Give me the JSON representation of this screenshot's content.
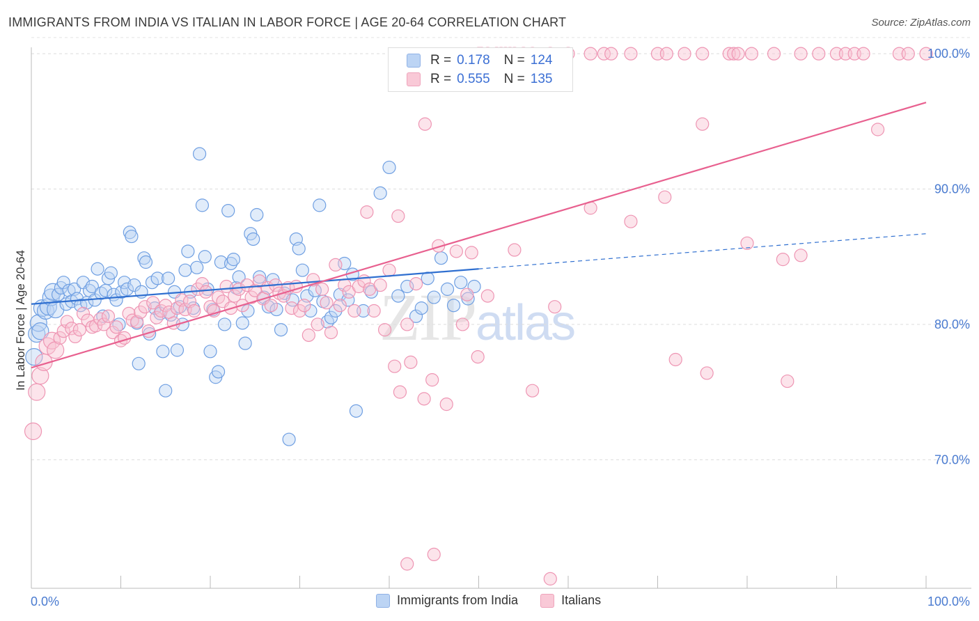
{
  "title": "IMMIGRANTS FROM INDIA VS ITALIAN IN LABOR FORCE | AGE 20-64 CORRELATION CHART",
  "source": "Source: ZipAtlas.com",
  "watermark": {
    "zip": "ZIP",
    "atlas": "atlas"
  },
  "legend": {
    "r_label": "R =",
    "n_label": "N =",
    "series": [
      {
        "r": "0.178",
        "n": "124",
        "color": "#a9c8f0"
      },
      {
        "r": "0.555",
        "n": "135",
        "color": "#f7b7cb"
      }
    ]
  },
  "bottom_legend": [
    {
      "label": "Immigrants from India",
      "color": "#a9c8f0"
    },
    {
      "label": "Italians",
      "color": "#f7b7cb"
    }
  ],
  "chart_data": {
    "type": "scatter",
    "ylabel": "In Labor Force | Age 20-64",
    "xlabel": "",
    "xlim": [
      0,
      100
    ],
    "ylim": [
      60.5,
      101.5
    ],
    "x_tick_labels": [
      "0.0%",
      "100.0%"
    ],
    "y_ticks": [
      70,
      80,
      90,
      100
    ],
    "y_tick_labels": [
      "70.0%",
      "80.0%",
      "90.0%",
      "100.0%"
    ],
    "grid": true,
    "series": [
      {
        "name": "Immigrants from India",
        "color": "#6fa0e6",
        "trend": {
          "x0": 0,
          "y0": 81.5,
          "x1": 50,
          "y1": 84.1,
          "dash_x1": 100,
          "dash_y1": 86.7,
          "color": "#2f6fd0"
        },
        "points": [
          [
            0.3,
            77.6
          ],
          [
            0.6,
            79.3
          ],
          [
            0.8,
            80.1
          ],
          [
            1.0,
            79.5
          ],
          [
            1.2,
            81.2
          ],
          [
            1.6,
            81.0
          ],
          [
            1.9,
            81.3
          ],
          [
            2.2,
            82.0
          ],
          [
            2.4,
            82.4
          ],
          [
            2.7,
            81.1
          ],
          [
            3.0,
            82.2
          ],
          [
            3.3,
            82.7
          ],
          [
            3.6,
            83.1
          ],
          [
            3.9,
            81.5
          ],
          [
            4.2,
            82.5
          ],
          [
            4.5,
            81.7
          ],
          [
            4.8,
            82.6
          ],
          [
            5.1,
            81.9
          ],
          [
            5.5,
            81.4
          ],
          [
            5.8,
            83.1
          ],
          [
            6.2,
            81.6
          ],
          [
            6.5,
            82.5
          ],
          [
            6.8,
            82.8
          ],
          [
            7.1,
            81.8
          ],
          [
            7.4,
            84.1
          ],
          [
            7.8,
            82.3
          ],
          [
            8.0,
            80.6
          ],
          [
            8.3,
            82.5
          ],
          [
            8.6,
            83.4
          ],
          [
            8.9,
            83.8
          ],
          [
            9.2,
            82.2
          ],
          [
            9.5,
            81.8
          ],
          [
            9.8,
            80.0
          ],
          [
            10.1,
            82.4
          ],
          [
            10.4,
            83.1
          ],
          [
            10.7,
            82.6
          ],
          [
            11.0,
            86.8
          ],
          [
            11.2,
            86.5
          ],
          [
            11.5,
            82.9
          ],
          [
            11.8,
            80.1
          ],
          [
            12.0,
            77.1
          ],
          [
            12.3,
            82.4
          ],
          [
            12.6,
            84.9
          ],
          [
            12.8,
            84.6
          ],
          [
            13.2,
            79.3
          ],
          [
            13.5,
            83.1
          ],
          [
            13.8,
            81.2
          ],
          [
            14.1,
            83.4
          ],
          [
            14.4,
            80.8
          ],
          [
            14.7,
            78.0
          ],
          [
            15.0,
            75.1
          ],
          [
            15.3,
            83.4
          ],
          [
            15.6,
            80.7
          ],
          [
            16.0,
            82.4
          ],
          [
            16.3,
            78.1
          ],
          [
            16.6,
            81.3
          ],
          [
            16.9,
            80.0
          ],
          [
            17.2,
            84.0
          ],
          [
            17.5,
            85.4
          ],
          [
            17.8,
            82.4
          ],
          [
            18.1,
            81.2
          ],
          [
            18.5,
            84.2
          ],
          [
            18.8,
            92.6
          ],
          [
            19.1,
            88.8
          ],
          [
            19.4,
            85.0
          ],
          [
            19.7,
            82.6
          ],
          [
            20.0,
            78.0
          ],
          [
            20.3,
            81.1
          ],
          [
            20.6,
            76.1
          ],
          [
            20.9,
            76.5
          ],
          [
            21.2,
            84.6
          ],
          [
            21.6,
            80.0
          ],
          [
            22.0,
            88.4
          ],
          [
            22.3,
            84.5
          ],
          [
            22.6,
            84.8
          ],
          [
            22.9,
            82.7
          ],
          [
            23.2,
            83.5
          ],
          [
            23.6,
            80.1
          ],
          [
            23.9,
            78.6
          ],
          [
            24.2,
            81.0
          ],
          [
            24.5,
            86.7
          ],
          [
            24.8,
            86.3
          ],
          [
            25.2,
            88.1
          ],
          [
            25.5,
            83.5
          ],
          [
            26.0,
            82.0
          ],
          [
            26.5,
            81.3
          ],
          [
            27.0,
            83.3
          ],
          [
            27.4,
            81.1
          ],
          [
            27.9,
            79.6
          ],
          [
            28.3,
            82.3
          ],
          [
            28.8,
            71.5
          ],
          [
            29.2,
            81.8
          ],
          [
            29.6,
            86.3
          ],
          [
            29.9,
            85.6
          ],
          [
            30.3,
            84.0
          ],
          [
            30.8,
            82.1
          ],
          [
            31.2,
            81.0
          ],
          [
            31.7,
            82.5
          ],
          [
            32.2,
            88.8
          ],
          [
            32.6,
            81.7
          ],
          [
            33.1,
            80.2
          ],
          [
            33.5,
            80.5
          ],
          [
            34.0,
            81.0
          ],
          [
            34.5,
            82.2
          ],
          [
            35.0,
            84.5
          ],
          [
            35.4,
            81.8
          ],
          [
            35.9,
            83.7
          ],
          [
            36.3,
            73.6
          ],
          [
            37.1,
            81.0
          ],
          [
            38.0,
            82.4
          ],
          [
            39.0,
            89.7
          ],
          [
            40.0,
            91.6
          ],
          [
            41.0,
            82.1
          ],
          [
            42.0,
            82.8
          ],
          [
            43.0,
            80.6
          ],
          [
            43.6,
            81.2
          ],
          [
            44.3,
            83.4
          ],
          [
            45.0,
            82.0
          ],
          [
            45.8,
            84.9
          ],
          [
            46.5,
            82.6
          ],
          [
            47.2,
            81.4
          ],
          [
            48.0,
            83.1
          ],
          [
            48.8,
            81.9
          ],
          [
            49.5,
            82.8
          ]
        ]
      },
      {
        "name": "Italians",
        "color": "#f08fb0",
        "trend": {
          "x0": 0,
          "y0": 76.8,
          "x1": 100,
          "y1": 96.4,
          "color": "#e8608f"
        },
        "points": [
          [
            0.2,
            72.1
          ],
          [
            0.6,
            75.0
          ],
          [
            1.0,
            76.2
          ],
          [
            1.4,
            77.2
          ],
          [
            1.8,
            78.4
          ],
          [
            2.3,
            78.8
          ],
          [
            2.7,
            78.1
          ],
          [
            3.2,
            79.0
          ],
          [
            3.6,
            79.5
          ],
          [
            4.0,
            80.2
          ],
          [
            4.5,
            79.7
          ],
          [
            4.9,
            79.1
          ],
          [
            5.4,
            79.6
          ],
          [
            5.8,
            80.8
          ],
          [
            6.3,
            80.3
          ],
          [
            6.8,
            79.8
          ],
          [
            7.2,
            79.9
          ],
          [
            7.7,
            80.4
          ],
          [
            8.1,
            80.0
          ],
          [
            8.6,
            80.6
          ],
          [
            9.1,
            79.4
          ],
          [
            9.5,
            79.8
          ],
          [
            10.0,
            78.8
          ],
          [
            10.4,
            79.0
          ],
          [
            10.9,
            80.8
          ],
          [
            11.3,
            80.3
          ],
          [
            11.8,
            80.2
          ],
          [
            12.2,
            80.9
          ],
          [
            12.7,
            81.3
          ],
          [
            13.1,
            79.5
          ],
          [
            13.6,
            81.6
          ],
          [
            14.0,
            80.5
          ],
          [
            14.5,
            81.0
          ],
          [
            15.0,
            81.4
          ],
          [
            15.4,
            80.9
          ],
          [
            15.9,
            80.1
          ],
          [
            16.3,
            81.2
          ],
          [
            16.8,
            81.8
          ],
          [
            17.2,
            81.1
          ],
          [
            17.7,
            81.7
          ],
          [
            18.2,
            81.0
          ],
          [
            18.6,
            82.6
          ],
          [
            19.1,
            83.0
          ],
          [
            19.5,
            82.4
          ],
          [
            20.0,
            81.3
          ],
          [
            20.4,
            81.0
          ],
          [
            20.9,
            82.0
          ],
          [
            21.4,
            81.7
          ],
          [
            21.8,
            82.8
          ],
          [
            22.3,
            81.2
          ],
          [
            22.7,
            82.1
          ],
          [
            23.2,
            82.6
          ],
          [
            23.6,
            81.4
          ],
          [
            24.1,
            82.9
          ],
          [
            24.6,
            82.0
          ],
          [
            25.0,
            82.5
          ],
          [
            25.5,
            83.2
          ],
          [
            25.9,
            81.9
          ],
          [
            26.4,
            82.7
          ],
          [
            26.8,
            81.4
          ],
          [
            27.3,
            82.9
          ],
          [
            27.7,
            82.3
          ],
          [
            28.2,
            82.1
          ],
          [
            28.7,
            82.7
          ],
          [
            29.1,
            81.2
          ],
          [
            29.6,
            82.8
          ],
          [
            30.0,
            81.0
          ],
          [
            30.5,
            81.4
          ],
          [
            31.0,
            79.2
          ],
          [
            31.5,
            83.3
          ],
          [
            32.0,
            80.0
          ],
          [
            32.5,
            82.6
          ],
          [
            33.0,
            81.6
          ],
          [
            33.5,
            79.4
          ],
          [
            34.0,
            84.4
          ],
          [
            34.5,
            81.4
          ],
          [
            35.0,
            82.9
          ],
          [
            35.5,
            82.4
          ],
          [
            36.1,
            81.0
          ],
          [
            36.6,
            82.8
          ],
          [
            37.2,
            83.2
          ],
          [
            37.8,
            82.6
          ],
          [
            38.3,
            81.0
          ],
          [
            39.0,
            82.9
          ],
          [
            39.5,
            79.6
          ],
          [
            40.0,
            84.0
          ],
          [
            40.6,
            76.9
          ],
          [
            41.2,
            75.0
          ],
          [
            42.0,
            80.0
          ],
          [
            42.4,
            77.2
          ],
          [
            43.0,
            83.0
          ],
          [
            43.9,
            74.5
          ],
          [
            44.8,
            75.9
          ],
          [
            45.5,
            85.8
          ],
          [
            46.4,
            74.1
          ],
          [
            47.5,
            85.4
          ],
          [
            48.2,
            80.0
          ],
          [
            48.7,
            82.2
          ],
          [
            49.2,
            85.3
          ],
          [
            49.9,
            77.6
          ],
          [
            50.0,
            100.0
          ],
          [
            50.3,
            100.0
          ],
          [
            51.0,
            100.0
          ],
          [
            52.0,
            100.0
          ],
          [
            52.5,
            100.0
          ],
          [
            53.0,
            100.0
          ],
          [
            53.5,
            100.0
          ],
          [
            54.0,
            100.0
          ],
          [
            55.0,
            100.0
          ],
          [
            56.0,
            100.0
          ],
          [
            58.0,
            100.0
          ],
          [
            60.0,
            100.0
          ],
          [
            62.5,
            100.0
          ],
          [
            64.0,
            100.0
          ],
          [
            64.8,
            100.0
          ],
          [
            67.0,
            100.0
          ],
          [
            70.0,
            100.0
          ],
          [
            71.0,
            100.0
          ],
          [
            73.0,
            100.0
          ],
          [
            75.0,
            100.0
          ],
          [
            78.0,
            100.0
          ],
          [
            78.5,
            100.0
          ],
          [
            79.0,
            100.0
          ],
          [
            80.5,
            100.0
          ],
          [
            83.0,
            100.0
          ],
          [
            86.0,
            100.0
          ],
          [
            88.0,
            100.0
          ],
          [
            90.0,
            100.0
          ],
          [
            91.0,
            100.0
          ],
          [
            92.0,
            100.0
          ],
          [
            93.0,
            100.0
          ],
          [
            94.6,
            94.4
          ],
          [
            97.0,
            100.0
          ],
          [
            98.0,
            100.0
          ],
          [
            100.0,
            100.0
          ]
        ]
      }
    ],
    "extra_italian_points": [
      [
        42.0,
        62.3
      ],
      [
        45.0,
        63.0
      ],
      [
        58.0,
        61.2
      ],
      [
        44.0,
        94.8
      ],
      [
        62.5,
        88.6
      ],
      [
        75.0,
        94.8
      ],
      [
        70.8,
        89.4
      ],
      [
        84.0,
        84.8
      ],
      [
        80.0,
        86.0
      ],
      [
        86.0,
        85.1
      ],
      [
        67.0,
        87.6
      ],
      [
        72.0,
        77.4
      ],
      [
        75.5,
        76.4
      ],
      [
        84.5,
        75.8
      ],
      [
        56.0,
        75.1
      ],
      [
        41.0,
        88.0
      ],
      [
        37.5,
        88.3
      ],
      [
        54.0,
        85.5
      ],
      [
        51.0,
        82.1
      ],
      [
        58.5,
        81.3
      ]
    ]
  }
}
